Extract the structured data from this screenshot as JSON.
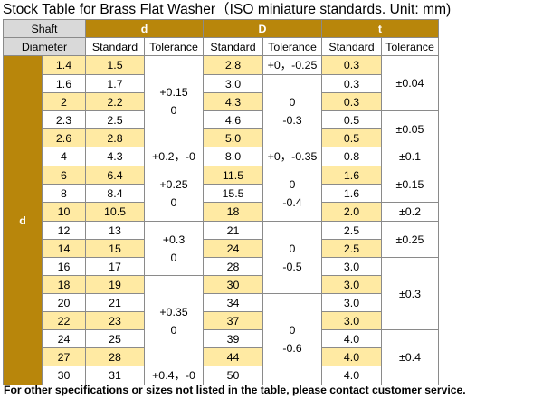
{
  "title": "Stock Table for Brass Flat Washer（ISO miniature standards. Unit: mm)",
  "header": {
    "shaft_line1": "Shaft",
    "shaft_line2": "Diameter",
    "group_d": "d",
    "group_D": "D",
    "group_t": "t",
    "standard": "Standard",
    "tolerance": "Tolerance"
  },
  "shaft_label": "d",
  "rows": [
    {
      "shaft": "1.4",
      "d": "1.5",
      "D": "2.8",
      "t": "0.3"
    },
    {
      "shaft": "1.6",
      "d": "1.7",
      "D": "3.0",
      "t": "0.3"
    },
    {
      "shaft": "2",
      "d": "2.2",
      "D": "4.3",
      "t": "0.3"
    },
    {
      "shaft": "2.3",
      "d": "2.5",
      "D": "4.6",
      "t": "0.5"
    },
    {
      "shaft": "2.6",
      "d": "2.8",
      "D": "5.0",
      "t": "0.5"
    },
    {
      "shaft": "4",
      "d": "4.3",
      "D": "8.0",
      "t": "0.8"
    },
    {
      "shaft": "6",
      "d": "6.4",
      "D": "11.5",
      "t": "1.6"
    },
    {
      "shaft": "8",
      "d": "8.4",
      "D": "15.5",
      "t": "1.6"
    },
    {
      "shaft": "10",
      "d": "10.5",
      "D": "18",
      "t": "2.0"
    },
    {
      "shaft": "12",
      "d": "13",
      "D": "21",
      "t": "2.5"
    },
    {
      "shaft": "14",
      "d": "15",
      "D": "24",
      "t": "2.5"
    },
    {
      "shaft": "16",
      "d": "17",
      "D": "28",
      "t": "3.0"
    },
    {
      "shaft": "18",
      "d": "19",
      "D": "30",
      "t": "3.0"
    },
    {
      "shaft": "20",
      "d": "21",
      "D": "34",
      "t": "3.0"
    },
    {
      "shaft": "22",
      "d": "23",
      "D": "37",
      "t": "3.0"
    },
    {
      "shaft": "24",
      "d": "25",
      "D": "39",
      "t": "4.0"
    },
    {
      "shaft": "27",
      "d": "28",
      "D": "44",
      "t": "4.0"
    },
    {
      "shaft": "30",
      "d": "31",
      "D": "50",
      "t": "4.0"
    }
  ],
  "tol_d": [
    {
      "line1": "+0.15",
      "line2": "0"
    },
    {
      "line1": "+0.2，-0"
    },
    {
      "line1": "+0.25",
      "line2": "0"
    },
    {
      "line1": "+0.3",
      "line2": "0"
    },
    {
      "line1": "+0.35",
      "line2": "0"
    },
    {
      "line1": "+0.4，-0"
    }
  ],
  "tol_D": [
    {
      "line1": "+0，-0.25"
    },
    {
      "line1": "0",
      "line2": "-0.3"
    },
    {
      "line1": "+0，-0.35"
    },
    {
      "line1": "0",
      "line2": "-0.4"
    },
    {
      "line1": "0",
      "line2": "-0.5"
    },
    {
      "line1": "0",
      "line2": "-0.6"
    }
  ],
  "tol_t": [
    {
      "line1": "±0.04"
    },
    {
      "line1": "±0.05"
    },
    {
      "line1": "±0.1"
    },
    {
      "line1": "±0.15"
    },
    {
      "line1": "±0.2"
    },
    {
      "line1": "±0.25"
    },
    {
      "line1": "±0.3"
    },
    {
      "line1": "±0.4"
    }
  ],
  "footnote": "For other specifications or sizes not listed in the table, please contact customer service.",
  "colors": {
    "gold": "#b8860b",
    "light_yellow": "#ffeaa3",
    "header_gray": "#d9d9d9"
  }
}
